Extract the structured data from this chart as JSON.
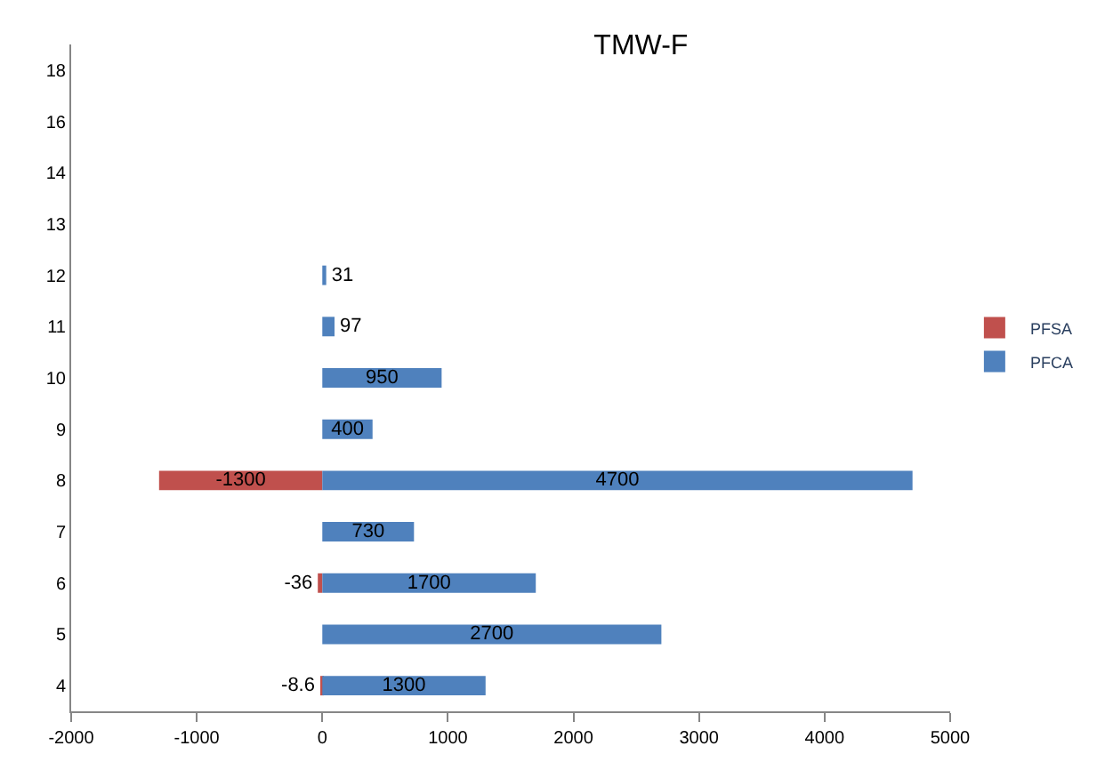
{
  "chart_data": {
    "type": "bar",
    "orientation": "horizontal",
    "stacked": true,
    "title": "TMW-F",
    "categories": [
      "18",
      "16",
      "14",
      "13",
      "12",
      "11",
      "10",
      "9",
      "8",
      "7",
      "6",
      "5",
      "4"
    ],
    "series": [
      {
        "name": "PFSA",
        "color": "#c0504d",
        "values": [
          null,
          null,
          null,
          null,
          null,
          null,
          null,
          null,
          -1300,
          null,
          -36,
          null,
          -8.6
        ]
      },
      {
        "name": "PFCA",
        "color": "#4f81bd",
        "values": [
          null,
          null,
          null,
          null,
          31,
          97,
          950,
          400,
          4700,
          730,
          1700,
          2700,
          1300
        ]
      }
    ],
    "xlim": [
      -2000,
      5000
    ],
    "xticks": [
      -2000,
      -1000,
      0,
      1000,
      2000,
      3000,
      4000,
      5000
    ],
    "data_labels": true,
    "grid": false,
    "legend": "right"
  }
}
